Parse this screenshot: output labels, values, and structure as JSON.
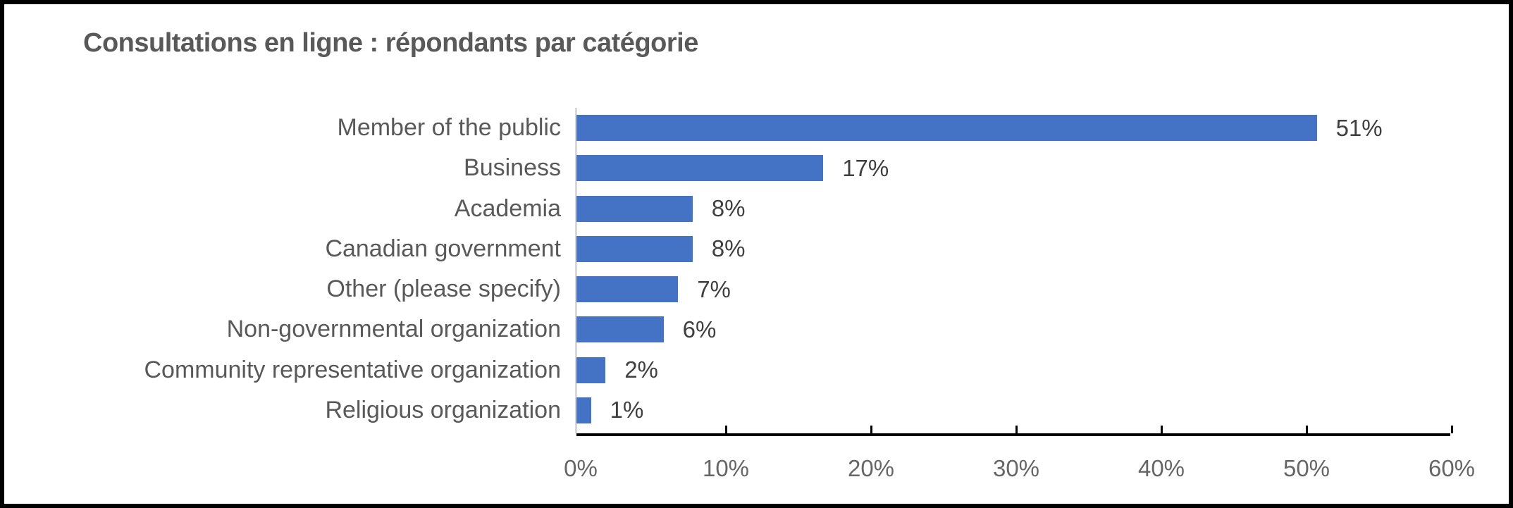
{
  "chart": {
    "title": "Consultations en ligne : répondants par catégorie"
  },
  "chart_data": {
    "type": "bar",
    "orientation": "horizontal",
    "title": "Consultations en ligne : répondants par catégorie",
    "categories": [
      "Member of the public",
      "Business",
      "Academia",
      "Canadian government",
      "Other (please specify)",
      "Non-governmental organization",
      "Community representative organization",
      "Religious organization"
    ],
    "values": [
      51,
      17,
      8,
      8,
      7,
      6,
      2,
      1
    ],
    "value_labels": [
      "51%",
      "17%",
      "8%",
      "8%",
      "7%",
      "6%",
      "2%",
      "1%"
    ],
    "xlabel": "",
    "ylabel": "",
    "xlim": [
      0,
      60
    ],
    "x_tick_interval": 10,
    "x_tick_labels": [
      "0%",
      "10%",
      "20%",
      "30%",
      "40%",
      "50%",
      "60%"
    ],
    "grid": false,
    "legend": false,
    "colors": {
      "bar": "#4472C4",
      "title_text": "#595959",
      "category_text": "#595959",
      "value_text": "#3F3F3F",
      "tick_text": "#666666",
      "axis_line": "#000000",
      "baseline": "#D9D9D9"
    }
  }
}
